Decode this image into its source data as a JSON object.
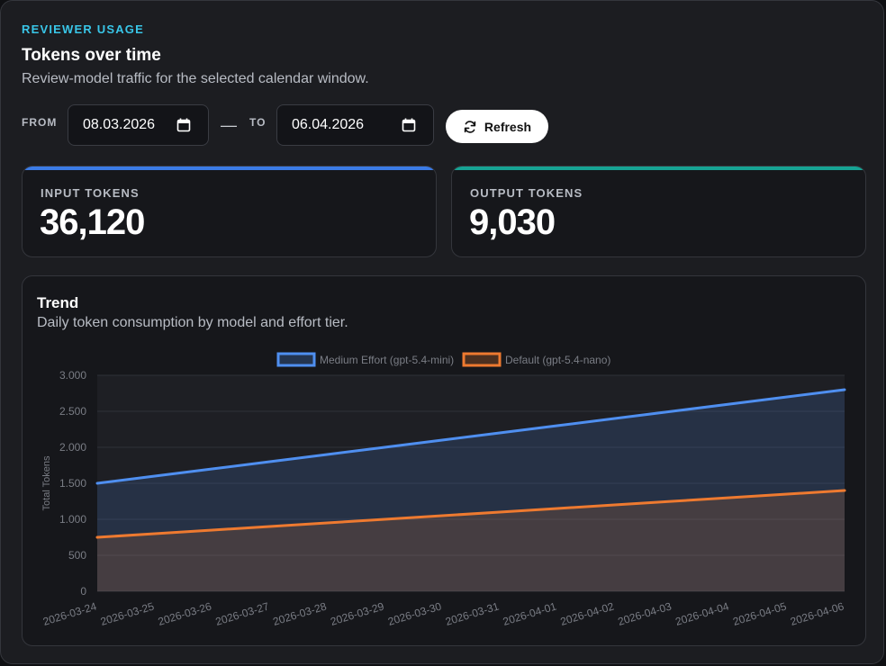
{
  "header": {
    "eyebrow": "REVIEWER USAGE",
    "title": "Tokens over time",
    "subtitle": "Review-model traffic for the selected calendar window."
  },
  "filters": {
    "from_label": "FROM",
    "from_value": "08.03.2026",
    "separator": "—",
    "to_label": "TO",
    "to_value": "06.04.2026",
    "refresh_label": "Refresh"
  },
  "stats": [
    {
      "label": "INPUT TOKENS",
      "value": "36,120",
      "accent": "#3b7be6"
    },
    {
      "label": "OUTPUT TOKENS",
      "value": "9,030",
      "accent": "#16a394"
    }
  ],
  "trend": {
    "title": "Trend",
    "subtitle": "Daily token consumption by model and effort tier."
  },
  "chart_data": {
    "type": "area",
    "categories": [
      "2026-03-24",
      "2026-03-25",
      "2026-03-26",
      "2026-03-27",
      "2026-03-28",
      "2026-03-29",
      "2026-03-30",
      "2026-03-31",
      "2026-04-01",
      "2026-04-02",
      "2026-04-03",
      "2026-04-04",
      "2026-04-05",
      "2026-04-06"
    ],
    "series": [
      {
        "name": "Medium Effort (gpt-5.4-mini)",
        "color": "#4f8ff0",
        "values": [
          1500,
          1600,
          1700,
          1800,
          1900,
          2000,
          2100,
          2200,
          2300,
          2400,
          2500,
          2600,
          2700,
          2800
        ]
      },
      {
        "name": "Default (gpt-5.4-nano)",
        "color": "#ee7a30",
        "values": [
          750,
          800,
          850,
          900,
          950,
          1000,
          1050,
          1100,
          1150,
          1200,
          1250,
          1300,
          1350,
          1400
        ]
      }
    ],
    "ylabel": "Total Tokens",
    "ylim": [
      0,
      3000
    ],
    "yticks": [
      0,
      500,
      1000,
      1500,
      2000,
      2500,
      3000
    ],
    "ytick_labels": [
      "0",
      "500",
      "1.000",
      "1.500",
      "2.000",
      "2.500",
      "3.000"
    ],
    "grid": true,
    "legend": "top-center"
  }
}
